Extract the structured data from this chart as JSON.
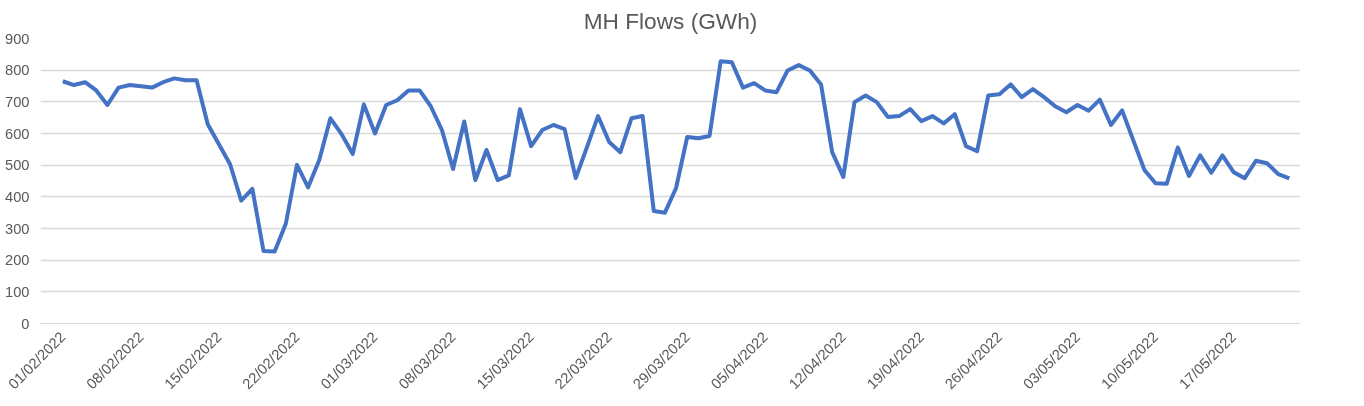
{
  "chart_data": {
    "type": "line",
    "title": "MH Flows (GWh)",
    "x": [
      "2022-02-01",
      "2022-02-02",
      "2022-02-03",
      "2022-02-04",
      "2022-02-05",
      "2022-02-06",
      "2022-02-07",
      "2022-02-08",
      "2022-02-09",
      "2022-02-10",
      "2022-02-11",
      "2022-02-12",
      "2022-02-13",
      "2022-02-14",
      "2022-02-15",
      "2022-02-16",
      "2022-02-17",
      "2022-02-18",
      "2022-02-19",
      "2022-02-20",
      "2022-02-21",
      "2022-02-22",
      "2022-02-23",
      "2022-02-24",
      "2022-02-25",
      "2022-02-26",
      "2022-02-27",
      "2022-02-28",
      "2022-03-01",
      "2022-03-02",
      "2022-03-03",
      "2022-03-04",
      "2022-03-05",
      "2022-03-06",
      "2022-03-07",
      "2022-03-08",
      "2022-03-09",
      "2022-03-10",
      "2022-03-11",
      "2022-03-12",
      "2022-03-13",
      "2022-03-14",
      "2022-03-15",
      "2022-03-16",
      "2022-03-17",
      "2022-03-18",
      "2022-03-19",
      "2022-03-20",
      "2022-03-21",
      "2022-03-22",
      "2022-03-23",
      "2022-03-24",
      "2022-03-25",
      "2022-03-26",
      "2022-03-27",
      "2022-03-28",
      "2022-03-29",
      "2022-03-30",
      "2022-03-31",
      "2022-04-01",
      "2022-04-02",
      "2022-04-03",
      "2022-04-04",
      "2022-04-05",
      "2022-04-06",
      "2022-04-07",
      "2022-04-08",
      "2022-04-09",
      "2022-04-10",
      "2022-04-11",
      "2022-04-12",
      "2022-04-13",
      "2022-04-14",
      "2022-04-15",
      "2022-04-16",
      "2022-04-17",
      "2022-04-18",
      "2022-04-19",
      "2022-04-20",
      "2022-04-21",
      "2022-04-22",
      "2022-04-23",
      "2022-04-24",
      "2022-04-25",
      "2022-04-26",
      "2022-04-27",
      "2022-04-28",
      "2022-04-29",
      "2022-04-30",
      "2022-05-01",
      "2022-05-02",
      "2022-05-03",
      "2022-05-04",
      "2022-05-05",
      "2022-05-06",
      "2022-05-07",
      "2022-05-08",
      "2022-05-09",
      "2022-05-10",
      "2022-05-11",
      "2022-05-12",
      "2022-05-13",
      "2022-05-14",
      "2022-05-15",
      "2022-05-16",
      "2022-05-17",
      "2022-05-18",
      "2022-05-19",
      "2022-05-20",
      "2022-05-21",
      "2022-05-22"
    ],
    "series": [
      {
        "color": "#4472c4",
        "values": [
          765,
          753,
          762,
          736,
          690,
          745,
          753,
          749,
          745,
          762,
          774,
          768,
          768,
          629,
          566,
          503,
          388,
          425,
          229,
          227,
          315,
          501,
          430,
          516,
          648,
          598,
          535,
          692,
          600,
          690,
          705,
          736,
          736,
          686,
          611,
          488,
          638,
          453,
          548,
          453,
          468,
          677,
          560,
          611,
          627,
          614,
          459,
          556,
          655,
          573,
          541,
          648,
          655,
          355,
          350,
          428,
          589,
          585,
          592,
          828,
          825,
          745,
          759,
          736,
          730,
          799,
          816,
          799,
          755,
          541,
          463,
          699,
          720,
          699,
          652,
          655,
          677,
          639,
          655,
          632,
          661,
          560,
          544,
          720,
          724,
          755,
          715,
          740,
          715,
          686,
          667,
          690,
          672,
          707,
          627,
          673,
          579,
          485,
          443,
          441,
          556,
          466,
          531,
          476,
          531,
          478,
          459,
          514,
          506,
          472,
          458
        ]
      }
    ],
    "xlim": [
      "2022-01-30",
      "2022-05-23"
    ],
    "xticks": [
      {
        "value": "2022-02-01",
        "label": "01/02/2022"
      },
      {
        "value": "2022-02-08",
        "label": "08/02/2022"
      },
      {
        "value": "2022-02-15",
        "label": "15/02/2022"
      },
      {
        "value": "2022-02-22",
        "label": "22/02/2022"
      },
      {
        "value": "2022-03-01",
        "label": "01/03/2022"
      },
      {
        "value": "2022-03-08",
        "label": "08/03/2022"
      },
      {
        "value": "2022-03-15",
        "label": "15/03/2022"
      },
      {
        "value": "2022-03-22",
        "label": "22/03/2022"
      },
      {
        "value": "2022-03-29",
        "label": "29/03/2022"
      },
      {
        "value": "2022-04-05",
        "label": "05/04/2022"
      },
      {
        "value": "2022-04-12",
        "label": "12/04/2022"
      },
      {
        "value": "2022-04-19",
        "label": "19/04/2022"
      },
      {
        "value": "2022-04-26",
        "label": "26/04/2022"
      },
      {
        "value": "2022-05-03",
        "label": "03/05/2022"
      },
      {
        "value": "2022-05-10",
        "label": "10/05/2022"
      },
      {
        "value": "2022-05-17",
        "label": "17/05/2022"
      }
    ],
    "ylim": [
      0,
      900
    ],
    "yticks": [
      0,
      100,
      200,
      300,
      400,
      500,
      600,
      700,
      800,
      900
    ],
    "grid": "y",
    "marker": "none",
    "line_style": "solid"
  }
}
